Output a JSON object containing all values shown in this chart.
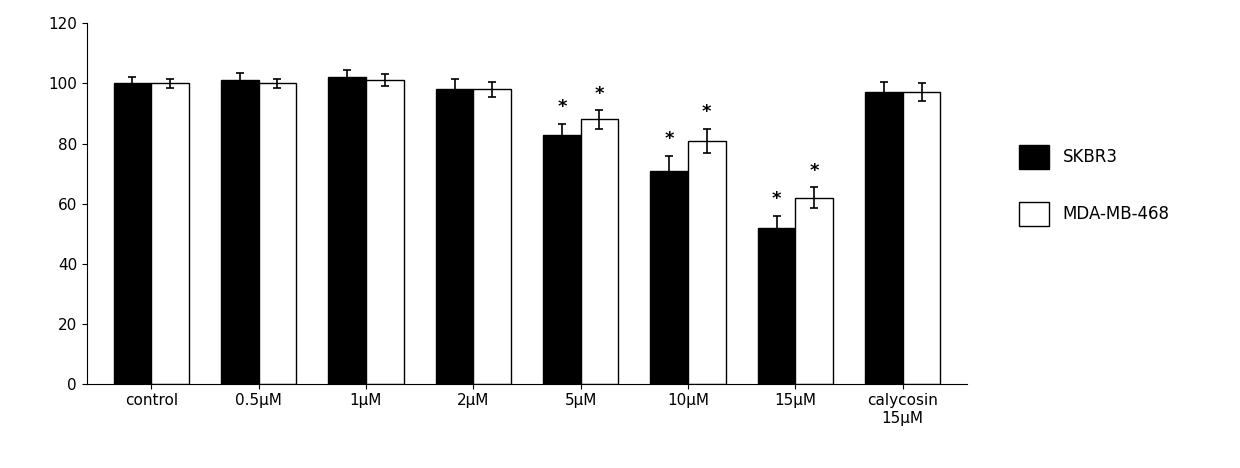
{
  "categories": [
    "control",
    "0.5μM",
    "1μM",
    "2μM",
    "5μM",
    "10μM",
    "15μM",
    "calycosin\n15μM"
  ],
  "skbr3_values": [
    100,
    101,
    102,
    98,
    83,
    71,
    52,
    97
  ],
  "mda_values": [
    100,
    100,
    101,
    98,
    88,
    81,
    62,
    97
  ],
  "skbr3_errors": [
    2.0,
    2.5,
    2.5,
    3.5,
    3.5,
    5.0,
    4.0,
    3.5
  ],
  "mda_errors": [
    1.5,
    1.5,
    2.0,
    2.5,
    3.0,
    4.0,
    3.5,
    3.0
  ],
  "skbr3_color": "#000000",
  "mda_color": "#ffffff",
  "bar_edge_color": "#000000",
  "ylim": [
    0,
    120
  ],
  "yticks": [
    0,
    20,
    40,
    60,
    80,
    100,
    120
  ],
  "bar_width": 0.35,
  "legend_labels": [
    "SKBR3",
    "MDA-MB-468"
  ],
  "significance_skbr3": [
    false,
    false,
    false,
    false,
    true,
    true,
    true,
    false
  ],
  "significance_mda": [
    false,
    false,
    false,
    false,
    true,
    true,
    true,
    false
  ],
  "figsize": [
    12.4,
    4.68
  ],
  "dpi": 100
}
